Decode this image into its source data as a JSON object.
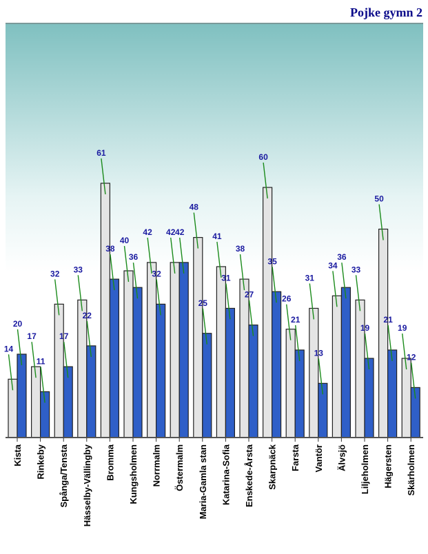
{
  "header": {
    "title": "Pojke gymn 2"
  },
  "chart_data": {
    "type": "bar",
    "title": "Pojke gymn 2",
    "xlabel": "",
    "ylabel": "",
    "ylim": [
      0,
      65
    ],
    "categories": [
      "Kista",
      "Rinkeby",
      "Spånga/Tensta",
      "Hässelby-Vällingby",
      "Bromma",
      "Kungsholmen",
      "Norrmalm",
      "Östermalm",
      "Maria-Gamla stan",
      "Katarina-Sofia",
      "Enskede-Årsta",
      "Skarpnäck",
      "Farsta",
      "Vantör",
      "Älvsjö",
      "Liljeholmen",
      "Hägersten",
      "Skärholmen"
    ],
    "series": [
      {
        "values": [
          14,
          17,
          32,
          33,
          61,
          40,
          42,
          42,
          48,
          41,
          38,
          60,
          26,
          31,
          34,
          33,
          50,
          19
        ]
      },
      {
        "values": [
          20,
          11,
          17,
          22,
          38,
          36,
          32,
          42,
          25,
          31,
          27,
          35,
          21,
          13,
          36,
          19,
          21,
          12
        ]
      }
    ],
    "colors": {
      "series1": "#e4e4e4",
      "series2": "#2f5fc8",
      "label": "#1a1aa0",
      "leader": "#1a8a1a"
    }
  }
}
